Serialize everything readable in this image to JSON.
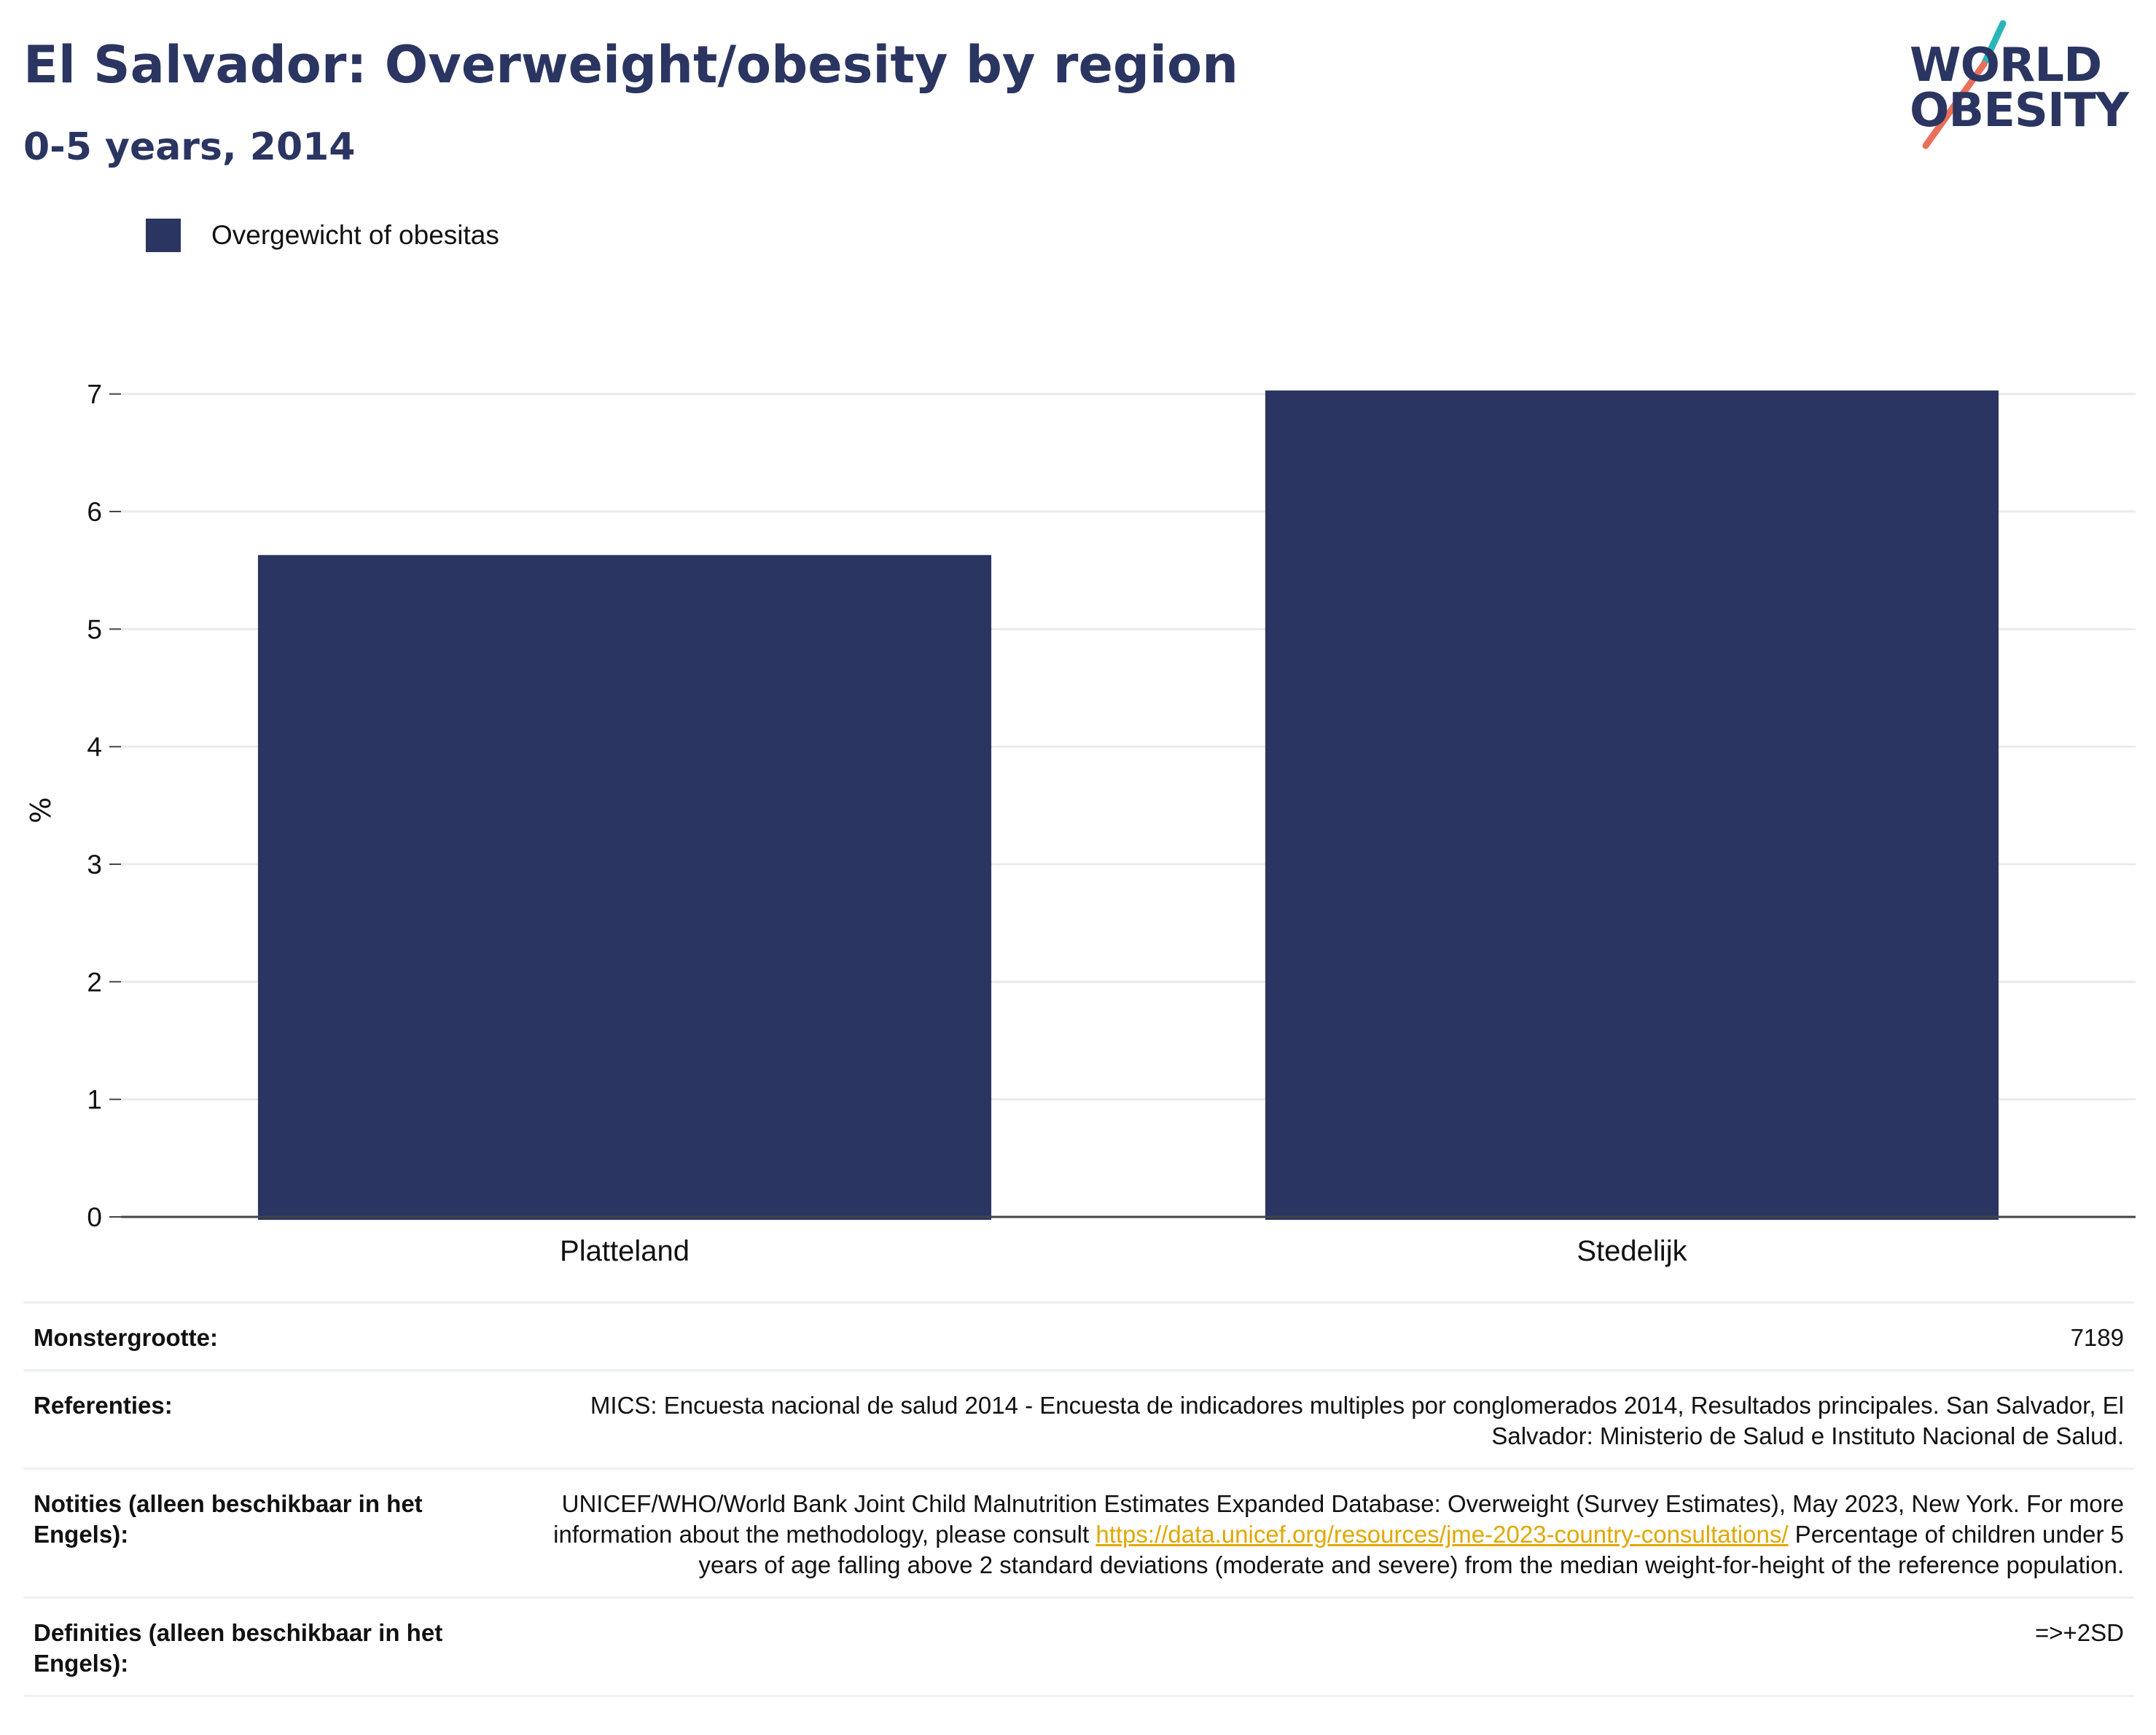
{
  "header": {
    "title": "El Salvador: Overweight/obesity by region",
    "subtitle": "0-5 years, 2014"
  },
  "logo": {
    "line1": "WORLD",
    "line2": "OBESITY",
    "accent_colors": [
      "#2bb5b8",
      "#e8705a"
    ]
  },
  "legend": {
    "label": "Overgewicht of obesitas",
    "color": "#2b3561"
  },
  "chart_data": {
    "type": "bar",
    "categories": [
      "Platteland",
      "Stedelijk"
    ],
    "series": [
      {
        "name": "Overgewicht of obesitas",
        "values": [
          5.63,
          7.03
        ],
        "color": "#2b3561"
      }
    ],
    "ylabel": "%",
    "xlabel": "",
    "ylim": [
      0,
      7.5
    ],
    "yticks": [
      0,
      1,
      2,
      3,
      4,
      5,
      6,
      7
    ],
    "grid": true
  },
  "notes": {
    "sample_size_label": "Monstergrootte:",
    "sample_size_value": "7189",
    "references_label": "Referenties:",
    "references_value": "MICS: Encuesta nacional de salud 2014 - Encuesta de indicadores multiples por conglomerados 2014, Resultados principales. San Salvador, El Salvador: Ministerio de Salud e Instituto Nacional de Salud.",
    "notes_label": "Notities (alleen beschikbaar in het Engels):",
    "notes_value_before": "UNICEF/WHO/World Bank Joint Child Malnutrition Estimates Expanded Database: Overweight (Survey Estimates), May 2023, New York. For more information about the methodology, please consult ",
    "notes_link": "https://data.unicef.org/resources/jme-2023-country-consultations/",
    "notes_value_after": " Percentage of children under 5 years of age falling above 2 standard deviations (moderate and severe) from the median weight-for-height of the reference population.",
    "definitions_label": "Definities (alleen beschikbaar in het Engels):",
    "definitions_value": "=>+2SD"
  }
}
